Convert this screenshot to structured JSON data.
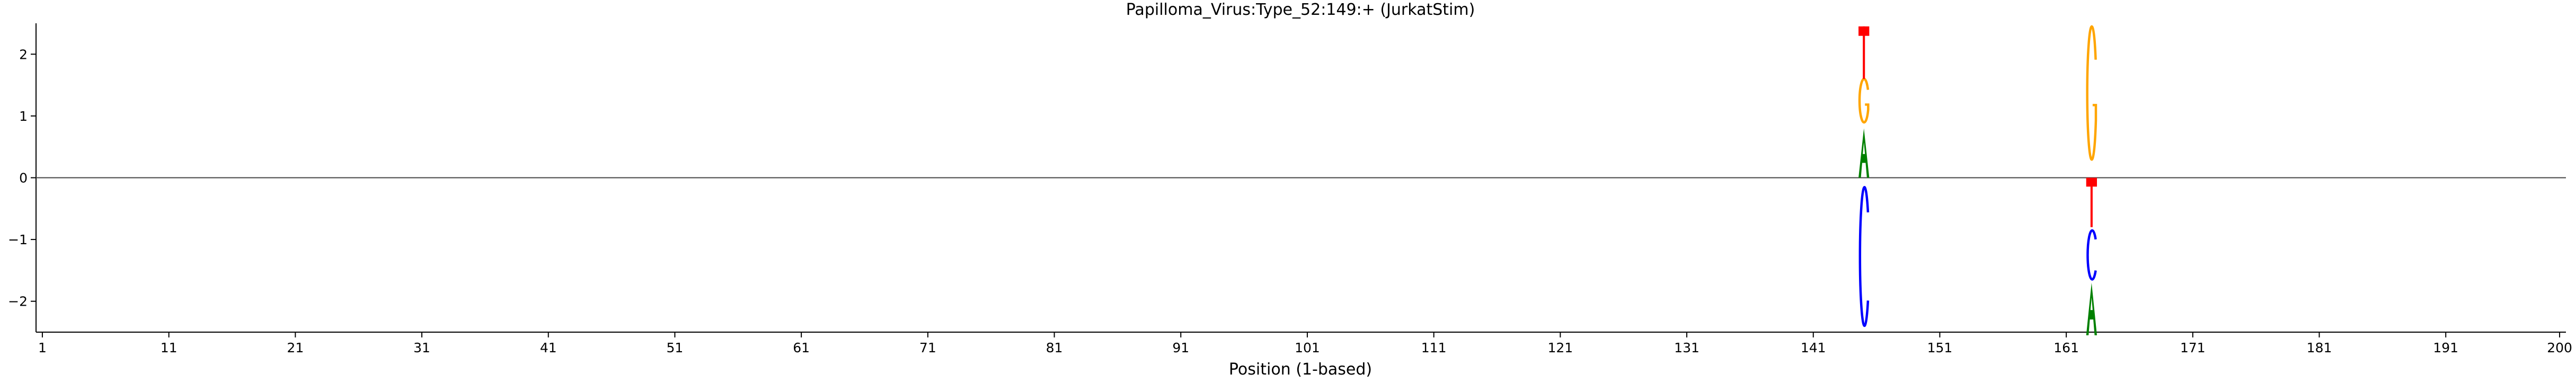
{
  "chart_data": {
    "type": "sequence-logo",
    "title": "Papilloma_Virus:Type_52:149:+  (JurkatStim)",
    "xlabel": "Position (1-based)",
    "ylabel": "",
    "xlim": [
      0.5,
      200.5
    ],
    "ylim": [
      -2.5,
      2.5
    ],
    "xticks": [
      1,
      11,
      21,
      31,
      41,
      51,
      61,
      71,
      81,
      91,
      101,
      111,
      121,
      131,
      141,
      151,
      161,
      171,
      181,
      191,
      200
    ],
    "yticks": [
      -2,
      -1,
      0,
      1,
      2
    ],
    "ytick_labels": [
      "−2",
      "−1",
      "0",
      "1",
      "2"
    ],
    "zero_line": true,
    "grid": false,
    "colors": {
      "A": "#008000",
      "C": "#0000ff",
      "G": "#ffa500",
      "T": "#ff0000"
    },
    "positions": [
      {
        "x": 145,
        "stacks": [
          {
            "base": "A",
            "y0": 0,
            "y1": 0.8
          },
          {
            "base": "G",
            "y0": 0.8,
            "y1": 1.6
          },
          {
            "base": "T",
            "y0": 1.6,
            "y1": 2.45
          },
          {
            "base": "C",
            "y0": 0,
            "y1": -2.55
          }
        ]
      },
      {
        "x": 163,
        "stacks": [
          {
            "base": "G",
            "y0": 0,
            "y1": 2.45
          },
          {
            "base": "T",
            "y0": 0,
            "y1": -0.8
          },
          {
            "base": "C",
            "y0": -0.8,
            "y1": -1.7
          },
          {
            "base": "A",
            "y0": -1.7,
            "y1": -2.55
          }
        ]
      }
    ]
  }
}
